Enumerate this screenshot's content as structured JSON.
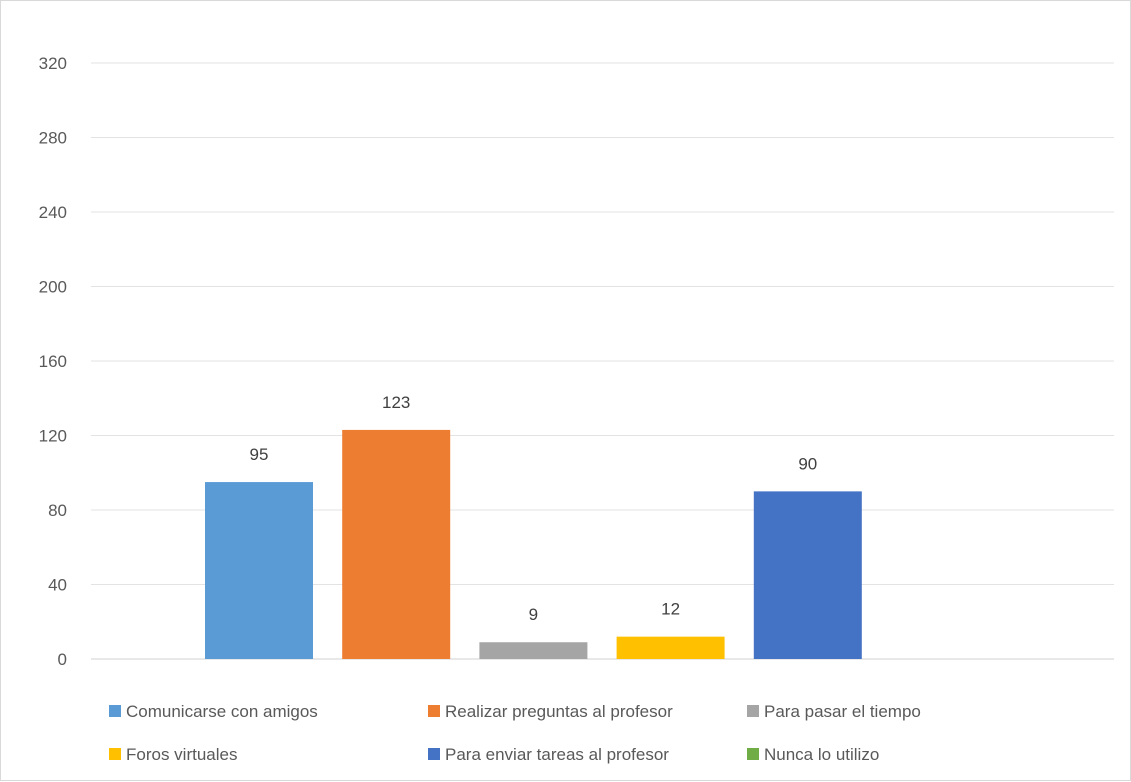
{
  "chart_data": {
    "type": "bar",
    "title": "",
    "xlabel": "",
    "ylabel": "",
    "ylim": [
      0,
      320
    ],
    "yticks": [
      0,
      40,
      80,
      120,
      160,
      200,
      240,
      280,
      320
    ],
    "grid": true,
    "legend_position": "bottom",
    "series": [
      {
        "name": "Comunicarse con amigos",
        "value": 95,
        "color": "#5b9bd5"
      },
      {
        "name": "Realizar preguntas al profesor",
        "value": 123,
        "color": "#ed7d31"
      },
      {
        "name": "Para pasar el tiempo",
        "value": 9,
        "color": "#a5a5a5"
      },
      {
        "name": "Foros virtuales",
        "value": 12,
        "color": "#ffc000"
      },
      {
        "name": "Para enviar tareas al profesor",
        "value": 90,
        "color": "#4472c4"
      },
      {
        "name": "Nunca lo utilizo",
        "value": 0,
        "color": "#70ad47"
      }
    ]
  }
}
